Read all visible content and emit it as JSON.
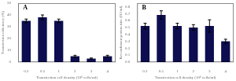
{
  "chart_data": [
    {
      "type": "bar",
      "annotations": [
        "A"
      ],
      "xlabel": "Transfection cell density (10⁶ cells/ml)",
      "ylabel": "Transfection efficiency (%)",
      "categories": [
        "0.2",
        "0.5",
        "1",
        "2",
        "3",
        "4"
      ],
      "values": [
        35,
        38,
        35,
        5,
        3,
        5
      ],
      "errors": [
        1.5,
        2.0,
        1.5,
        0.8,
        0.5,
        0.8
      ],
      "color": "#0d0d50",
      "ylim": [
        0,
        50
      ],
      "yticks": [
        0,
        10,
        20,
        30,
        40,
        50
      ],
      "grid": false
    },
    {
      "type": "bar",
      "annotations": [
        "B"
      ],
      "xlabel": "Transfection cell density (10⁶ cells/ml)",
      "ylabel": "Recombinant protein titer (IU/ml)",
      "categories": [
        "0.2",
        "0.5",
        "1",
        "2",
        "3",
        "4"
      ],
      "values": [
        0.52,
        0.68,
        0.52,
        0.5,
        0.52,
        0.3
      ],
      "errors": [
        0.04,
        0.06,
        0.04,
        0.04,
        0.09,
        0.03
      ],
      "color": "#0d0d50",
      "ylim": [
        0,
        0.85
      ],
      "yticks": [
        {
          "value": 0.0,
          "label": "0.0"
        },
        0.1,
        0.2,
        0.3,
        0.4,
        0.5,
        0.6,
        0.7,
        0.8
      ],
      "grid": false
    }
  ]
}
